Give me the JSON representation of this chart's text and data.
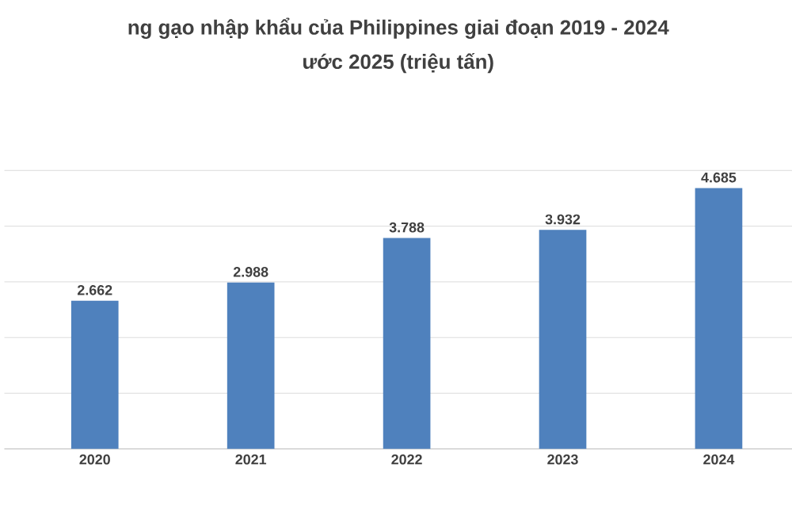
{
  "chart_data": {
    "type": "bar",
    "title": "ng gạo nhập khẩu của Philippines giai đoạn 2019 - 2024",
    "subtitle": "ước 2025 (triệu tấn)",
    "categories": [
      "2020",
      "2021",
      "2022",
      "2023",
      "2024"
    ],
    "values": [
      2.662,
      2.988,
      3.788,
      3.932,
      4.685
    ],
    "color": "#4f81bd",
    "data_labels": true,
    "tick_labels": "x",
    "grid": "y"
  }
}
